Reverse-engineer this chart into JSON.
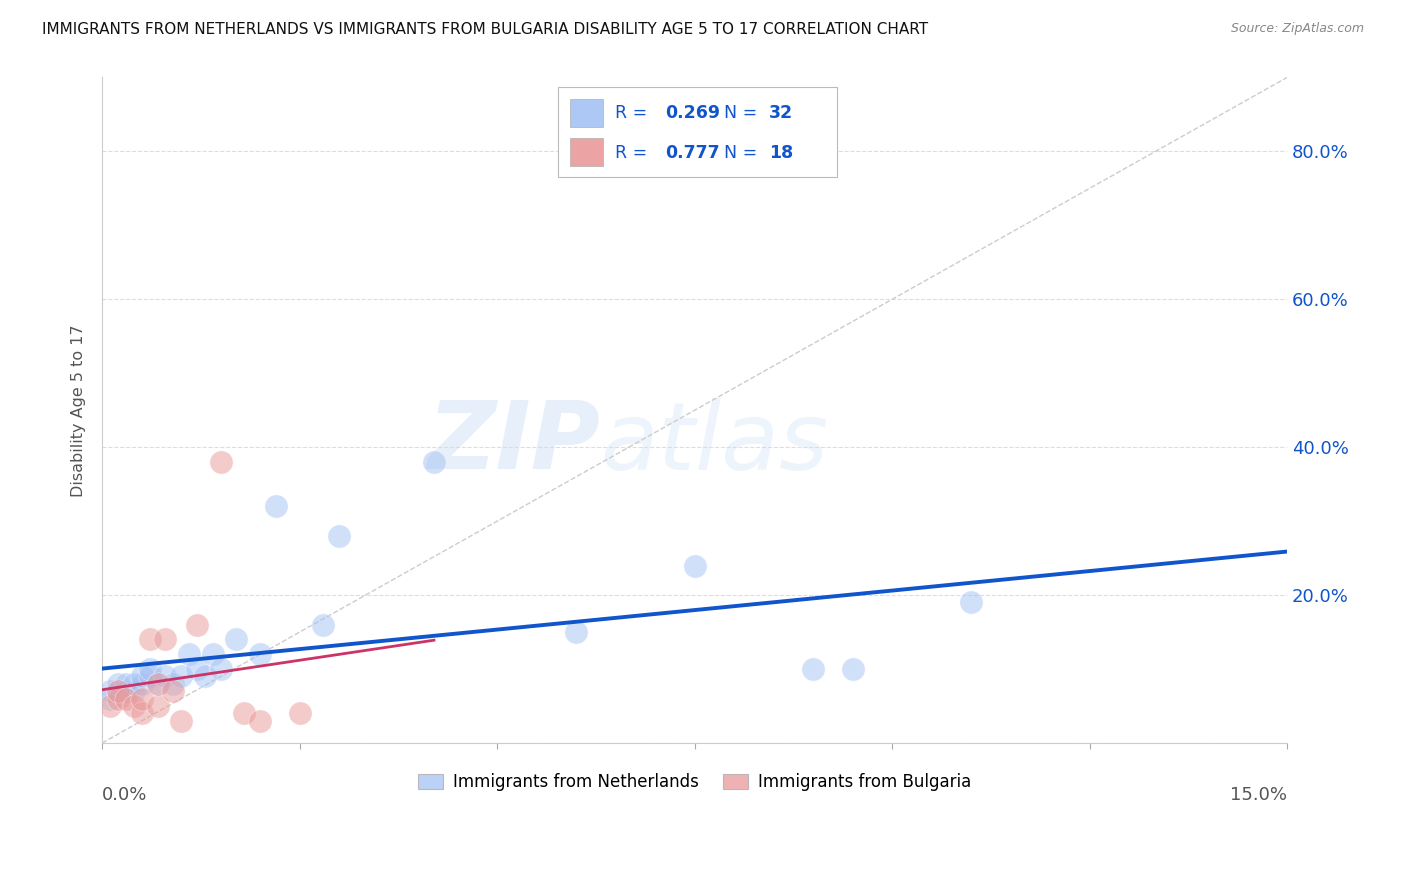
{
  "title": "IMMIGRANTS FROM NETHERLANDS VS IMMIGRANTS FROM BULGARIA DISABILITY AGE 5 TO 17 CORRELATION CHART",
  "source": "Source: ZipAtlas.com",
  "ylabel": "Disability Age 5 to 17",
  "legend_netherlands": "Immigrants from Netherlands",
  "legend_bulgaria": "Immigrants from Bulgaria",
  "R_netherlands": 0.269,
  "N_netherlands": 32,
  "R_bulgaria": 0.777,
  "N_bulgaria": 18,
  "color_netherlands": "#a4c2f4",
  "color_bulgaria": "#ea9999",
  "color_trend_netherlands": "#1155cc",
  "color_trend_bulgaria": "#cc3366",
  "color_legend_text": "#1155cc",
  "color_diagonal": "#cccccc",
  "watermark_zip": "ZIP",
  "watermark_atlas": "atlas",
  "nl_x": [
    0.001,
    0.001,
    0.002,
    0.002,
    0.003,
    0.003,
    0.004,
    0.004,
    0.005,
    0.005,
    0.006,
    0.006,
    0.007,
    0.008,
    0.009,
    0.01,
    0.011,
    0.012,
    0.013,
    0.014,
    0.015,
    0.017,
    0.02,
    0.022,
    0.028,
    0.03,
    0.042,
    0.06,
    0.075,
    0.09,
    0.095,
    0.11
  ],
  "nl_y": [
    0.06,
    0.07,
    0.07,
    0.08,
    0.07,
    0.08,
    0.07,
    0.08,
    0.08,
    0.09,
    0.09,
    0.1,
    0.08,
    0.09,
    0.08,
    0.09,
    0.12,
    0.1,
    0.09,
    0.12,
    0.1,
    0.14,
    0.12,
    0.32,
    0.16,
    0.28,
    0.38,
    0.15,
    0.24,
    0.1,
    0.1,
    0.19
  ],
  "bg_x": [
    0.001,
    0.002,
    0.002,
    0.003,
    0.004,
    0.005,
    0.005,
    0.006,
    0.007,
    0.007,
    0.008,
    0.009,
    0.01,
    0.012,
    0.015,
    0.018,
    0.02,
    0.025
  ],
  "bg_y": [
    0.05,
    0.06,
    0.07,
    0.06,
    0.05,
    0.04,
    0.06,
    0.14,
    0.05,
    0.08,
    0.14,
    0.07,
    0.03,
    0.16,
    0.38,
    0.04,
    0.03,
    0.04
  ],
  "xlim": [
    0.0,
    0.15
  ],
  "ylim": [
    0.0,
    0.9
  ],
  "yticks": [
    0.0,
    0.2,
    0.4,
    0.6,
    0.8
  ],
  "yticklabels_right": [
    "",
    "20.0%",
    "40.0%",
    "60.0%",
    "80.0%"
  ],
  "xticks": [
    0.0,
    0.025,
    0.05,
    0.075,
    0.1,
    0.125,
    0.15
  ]
}
